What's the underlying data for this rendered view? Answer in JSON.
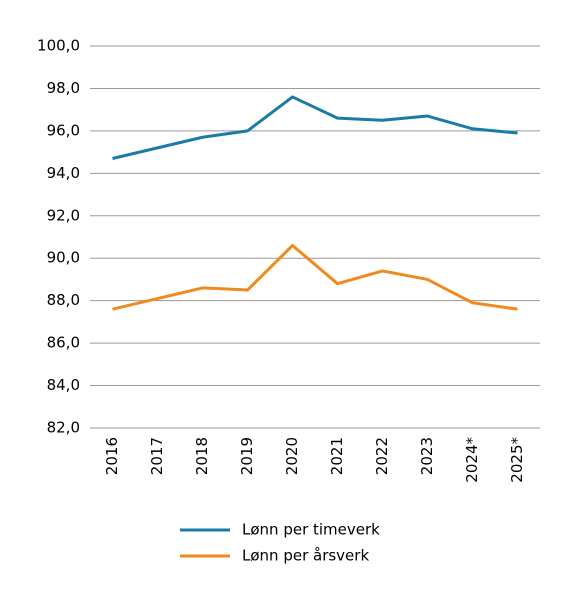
{
  "chart_data": {
    "type": "line",
    "categories": [
      "2016",
      "2017",
      "2018",
      "2019",
      "2020",
      "2021",
      "2022",
      "2023",
      "2024*",
      "2025*"
    ],
    "series": [
      {
        "name": "Lønn per timeverk",
        "color": "#1a7ca6",
        "values": [
          94.7,
          95.2,
          95.7,
          96.0,
          97.6,
          96.6,
          96.5,
          96.7,
          96.1,
          95.9
        ]
      },
      {
        "name": "Lønn per årsverk",
        "color": "#ee8a1f",
        "values": [
          87.6,
          88.1,
          88.6,
          88.5,
          90.6,
          88.8,
          89.4,
          89.0,
          87.9,
          87.6
        ]
      }
    ],
    "ylim": [
      82,
      100
    ],
    "yticks": [
      {
        "value": 82,
        "label": "82,0"
      },
      {
        "value": 84,
        "label": "84,0"
      },
      {
        "value": 86,
        "label": "86,0"
      },
      {
        "value": 88,
        "label": "88,0"
      },
      {
        "value": 90,
        "label": "90,0"
      },
      {
        "value": 92,
        "label": "92,0"
      },
      {
        "value": 94,
        "label": "94,0"
      },
      {
        "value": 96,
        "label": "96,0"
      },
      {
        "value": 98,
        "label": "98,0"
      },
      {
        "value": 100,
        "label": "100,0"
      }
    ],
    "grid": true
  }
}
